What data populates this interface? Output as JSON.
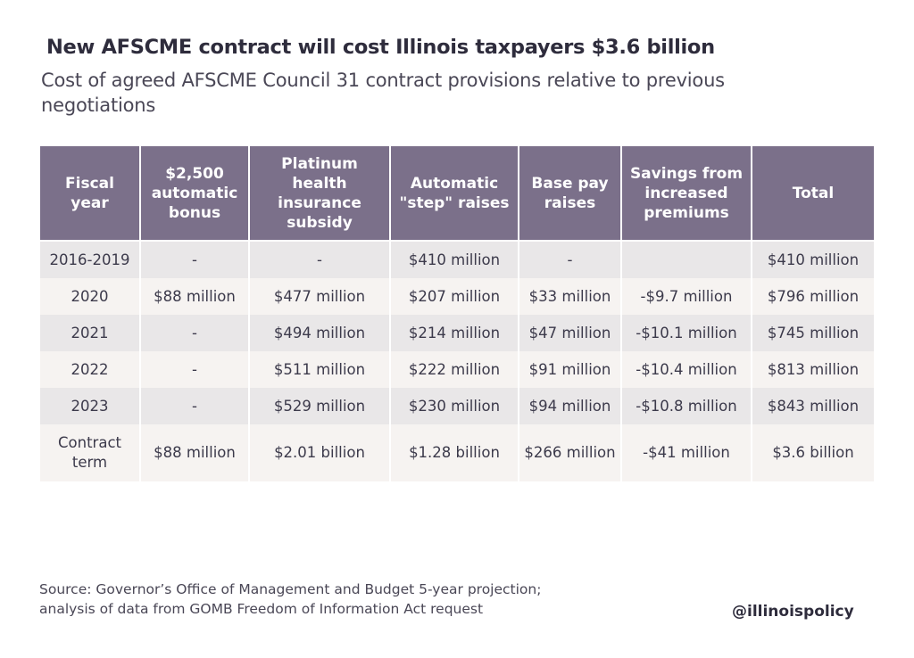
{
  "chart_data": {
    "type": "table",
    "title": "New AFSCME contract will cost Illinois taxpayers $3.6 billion",
    "subtitle": "Cost of agreed AFSCME Council 31 contract provisions relative to previous negotiations",
    "columns": [
      "Fiscal year",
      "$2,500 automatic bonus",
      "Platinum health insurance subsidy",
      "Automatic \"step\" raises",
      "Base pay raises",
      "Savings from increased premiums",
      "Total"
    ],
    "rows": [
      [
        "2016-2019",
        "-",
        "-",
        "$410 million",
        "-",
        "",
        "$410 million"
      ],
      [
        "2020",
        "$88 million",
        "$477 million",
        "$207 million",
        "$33 million",
        "-$9.7 million",
        "$796 million"
      ],
      [
        "2021",
        "-",
        "$494 million",
        "$214 million",
        "$47 million",
        "-$10.1 million",
        "$745 million"
      ],
      [
        "2022",
        "-",
        "$511 million",
        "$222 million",
        "$91 million",
        "-$10.4 million",
        "$813 million"
      ],
      [
        "2023",
        "-",
        "$529 million",
        "$230 million",
        "$94 million",
        "-$10.8 million",
        "$843 million"
      ],
      [
        "Contract term",
        "$88 million",
        "$2.01 billion",
        "$1.28 billion",
        "$266 million",
        "-$41 million",
        "$3.6 billion"
      ]
    ],
    "header_color": "#7b708a",
    "row_colors": [
      "#e9e7e8",
      "#f6f3f1"
    ]
  },
  "source": [
    "Source: Governor’s Office of Management and Budget 5-year projection;",
    "analysis of data from GOMB Freedom of Information Act request"
  ],
  "handle": "@illinoispolicy"
}
